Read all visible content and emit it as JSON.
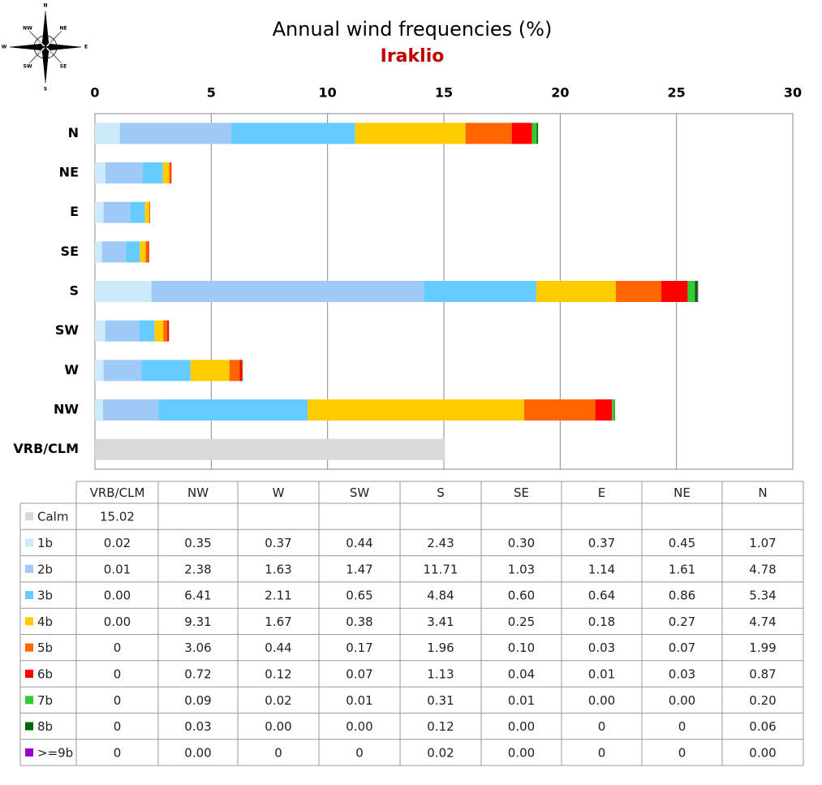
{
  "chart_data": {
    "type": "stacked_barh",
    "title": "Annual wind frequencies (%)",
    "subtitle": "Iraklio",
    "compass": [
      "N",
      "NE",
      "E",
      "SE",
      "S",
      "SW",
      "W",
      "NW"
    ],
    "categories": [
      "VRB/CLM",
      "NW",
      "W",
      "SW",
      "S",
      "SE",
      "E",
      "NE",
      "N"
    ],
    "xlim": [
      0,
      30
    ],
    "xticks": [
      0,
      5,
      10,
      15,
      20,
      25,
      30
    ],
    "grid": true,
    "series": [
      {
        "name": "Calm",
        "color": "#d9d9d9",
        "values": [
          15.02,
          null,
          null,
          null,
          null,
          null,
          null,
          null,
          null
        ],
        "value_labels": [
          "15.02",
          null,
          null,
          null,
          null,
          null,
          null,
          null,
          null
        ]
      },
      {
        "name": "1b",
        "color": "#cdeafb",
        "values": [
          0.02,
          0.35,
          0.37,
          0.44,
          2.43,
          0.3,
          0.37,
          0.45,
          1.07
        ],
        "value_labels": [
          "0.02",
          "0.35",
          "0.37",
          "0.44",
          "2.43",
          "0.30",
          "0.37",
          "0.45",
          "1.07"
        ]
      },
      {
        "name": "2b",
        "color": "#9fcaf7",
        "values": [
          0.01,
          2.38,
          1.63,
          1.47,
          11.71,
          1.03,
          1.14,
          1.61,
          4.78
        ],
        "value_labels": [
          "0.01",
          "2.38",
          "1.63",
          "1.47",
          "11.71",
          "1.03",
          "1.14",
          "1.61",
          "4.78"
        ]
      },
      {
        "name": "3b",
        "color": "#66ccff",
        "values": [
          0.0,
          6.41,
          2.11,
          0.65,
          4.84,
          0.6,
          0.64,
          0.86,
          5.34
        ],
        "value_labels": [
          "0.00",
          "6.41",
          "2.11",
          "0.65",
          "4.84",
          "0.60",
          "0.64",
          "0.86",
          "5.34"
        ]
      },
      {
        "name": "4b",
        "color": "#ffcc00",
        "values": [
          0.0,
          9.31,
          1.67,
          0.38,
          3.41,
          0.25,
          0.18,
          0.27,
          4.74
        ],
        "value_labels": [
          "0.00",
          "9.31",
          "1.67",
          "0.38",
          "3.41",
          "0.25",
          "0.18",
          "0.27",
          "4.74"
        ]
      },
      {
        "name": "5b",
        "color": "#ff6600",
        "values": [
          0,
          3.06,
          0.44,
          0.17,
          1.96,
          0.1,
          0.03,
          0.07,
          1.99
        ],
        "value_labels": [
          "0",
          "3.06",
          "0.44",
          "0.17",
          "1.96",
          "0.10",
          "0.03",
          "0.07",
          "1.99"
        ]
      },
      {
        "name": "6b",
        "color": "#ff0000",
        "values": [
          0,
          0.72,
          0.12,
          0.07,
          1.13,
          0.04,
          0.01,
          0.03,
          0.87
        ],
        "value_labels": [
          "0",
          "0.72",
          "0.12",
          "0.07",
          "1.13",
          "0.04",
          "0.01",
          "0.03",
          "0.87"
        ]
      },
      {
        "name": "7b",
        "color": "#33cc33",
        "values": [
          0,
          0.09,
          0.02,
          0.01,
          0.31,
          0.01,
          0.0,
          0.0,
          0.2
        ],
        "value_labels": [
          "0",
          "0.09",
          "0.02",
          "0.01",
          "0.31",
          "0.01",
          "0.00",
          "0.00",
          "0.20"
        ]
      },
      {
        "name": "8b",
        "color": "#006600",
        "values": [
          0,
          0.03,
          0.0,
          0.0,
          0.12,
          0.0,
          0,
          0,
          0.06
        ],
        "value_labels": [
          "0",
          "0.03",
          "0.00",
          "0.00",
          "0.12",
          "0.00",
          "0",
          "0",
          "0.06"
        ]
      },
      {
        "name": ">=9b",
        "color": "#9900cc",
        "values": [
          0,
          0.0,
          0,
          0,
          0.02,
          0.0,
          0,
          0,
          0.0
        ],
        "value_labels": [
          "0",
          "0.00",
          "0",
          "0",
          "0.02",
          "0.00",
          "0",
          "0",
          "0.00"
        ]
      }
    ]
  }
}
